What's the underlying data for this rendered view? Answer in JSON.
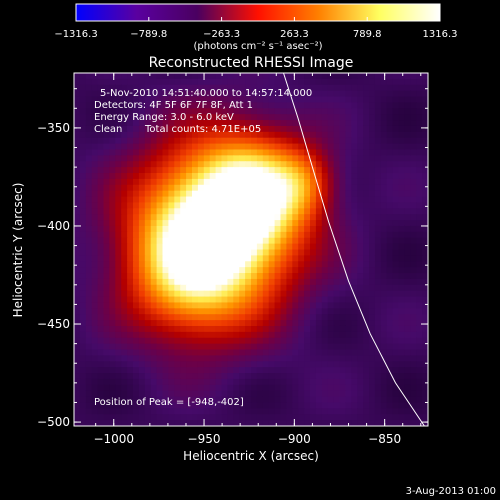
{
  "colorbar": {
    "ticks": [
      -1316.3,
      -789.8,
      -263.3,
      263.3,
      789.8,
      1316.3
    ],
    "tick_labels": [
      "−1316.3",
      "−789.8",
      "−263.3",
      "263.3",
      "789.8",
      "1316.3"
    ],
    "units_label": "(photons cm⁻² s⁻¹ asec⁻²)",
    "colors": [
      "#0000ff",
      "#5a00a0",
      "#4a0060",
      "#ff1000",
      "#ff8000",
      "#ffff60",
      "#ffffff"
    ]
  },
  "title": "Reconstructed RHESSI Image",
  "annotations": {
    "time_range": "5-Nov-2010 14:51:40.000 to 14:57:14.000",
    "detectors": "Detectors: 4F 5F 6F 7F 8F, Att 1",
    "energy_range": "Energy Range: 3.0 - 6.0 keV",
    "method": "Clean",
    "total_counts": "Total counts: 4.71E+05",
    "peak_position": "Position of Peak = [-948,-402]"
  },
  "axes": {
    "xlabel": "Heliocentric X (arcsec)",
    "ylabel": "Heliocentric Y (arcsec)",
    "xlim": [
      -1022,
      -826
    ],
    "ylim": [
      -502,
      -322
    ],
    "xticks": [
      -1000,
      -950,
      -900,
      -850
    ],
    "xtick_labels": [
      "−1000",
      "−950",
      "−900",
      "−850"
    ],
    "yticks": [
      -350,
      -400,
      -450,
      -500
    ],
    "ytick_labels": [
      "−350",
      "−400",
      "−450",
      "−500"
    ]
  },
  "limb_curve": [
    [
      -906,
      -322
    ],
    [
      -898,
      -345
    ],
    [
      -890,
      -370
    ],
    [
      -881,
      -398
    ],
    [
      -870,
      -428
    ],
    [
      -858,
      -455
    ],
    [
      -844,
      -480
    ],
    [
      -828,
      -502
    ]
  ],
  "image_sources": [
    {
      "x": -945,
      "y": -403,
      "sigma": 30,
      "amp": 1.0
    },
    {
      "x": -922,
      "y": -383,
      "sigma": 20,
      "amp": 0.55
    },
    {
      "x": -895,
      "y": -378,
      "sigma": 12,
      "amp": 0.3
    },
    {
      "x": -960,
      "y": -425,
      "sigma": 22,
      "amp": 0.35
    }
  ],
  "timestamp": "3-Aug-2013 01:00"
}
